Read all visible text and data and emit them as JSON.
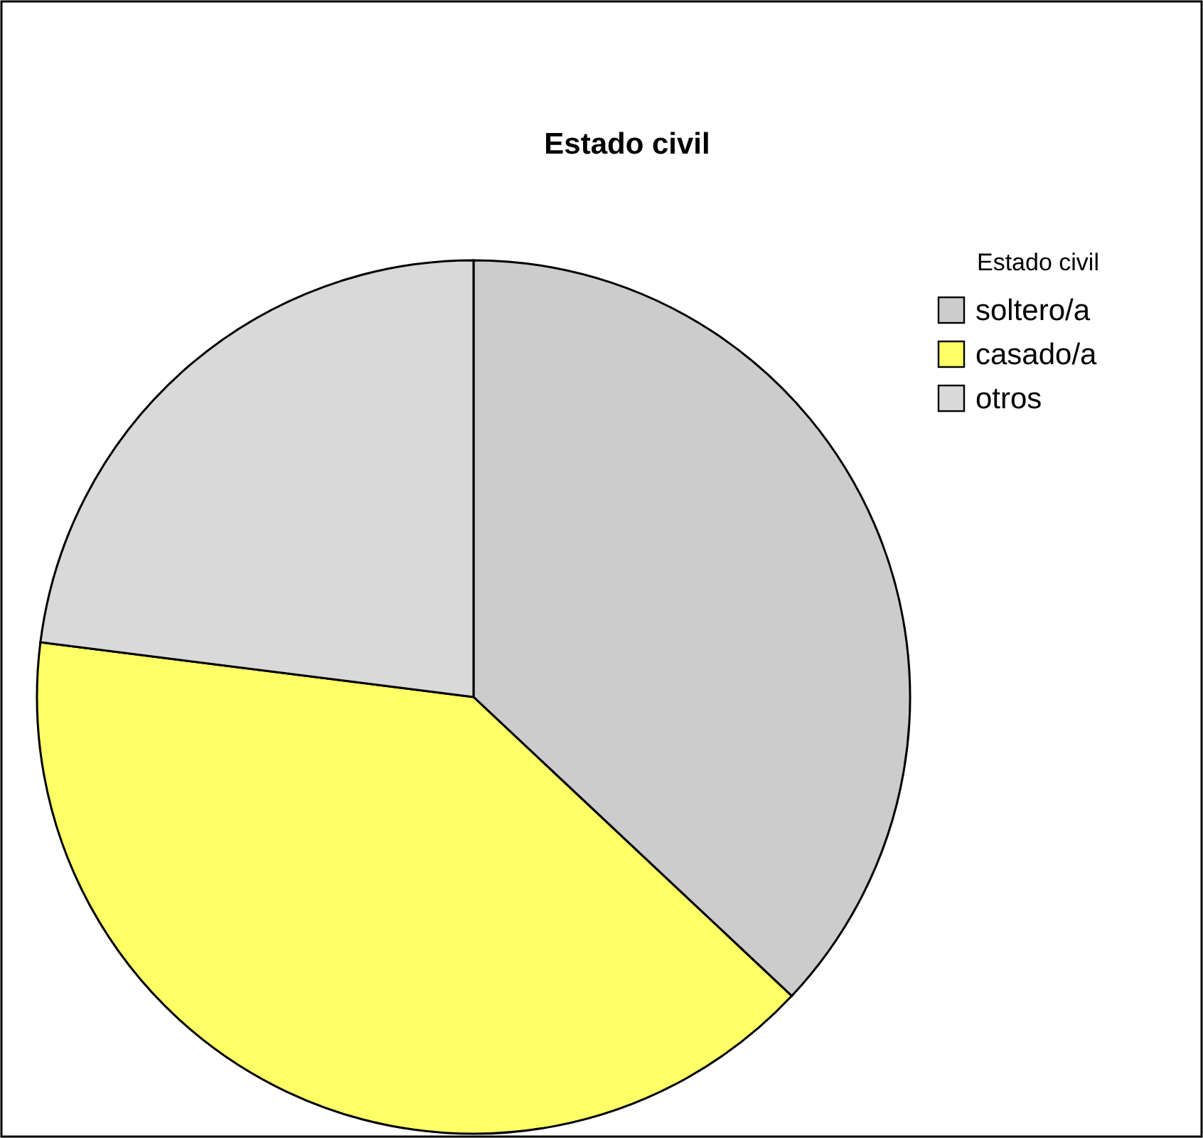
{
  "chart_data": {
    "type": "pie",
    "title": "Estado civil",
    "legend_title": "Estado civil",
    "legend": "right",
    "categories": [
      "soltero/a",
      "casado/a",
      "otros"
    ],
    "values": [
      37,
      40,
      23
    ],
    "colors": [
      "#cccccc",
      "#ffff66",
      "#d9d9d9"
    ]
  }
}
